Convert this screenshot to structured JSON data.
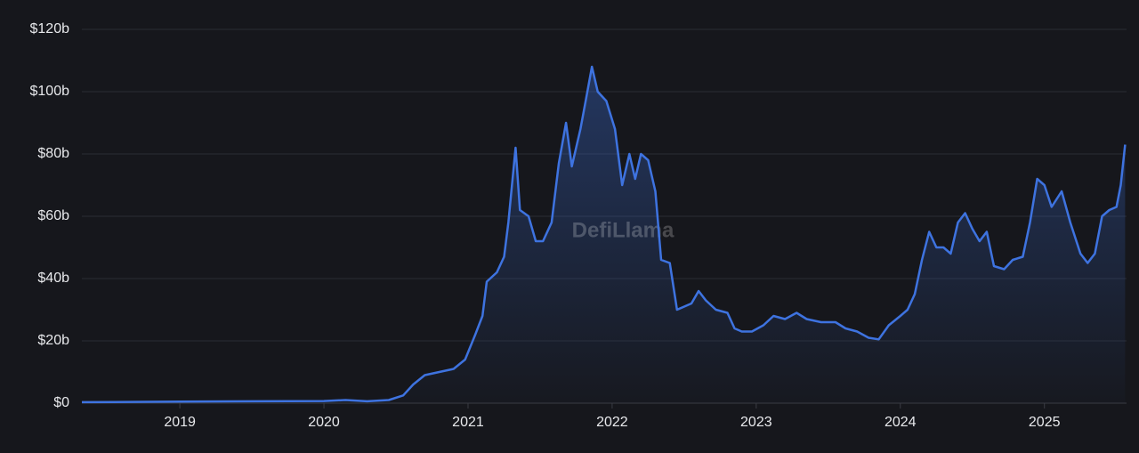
{
  "chart_data": {
    "type": "area",
    "watermark": "DefiLlama",
    "color": "#3e73e0",
    "grid": true,
    "xlim": [
      2018.32,
      2025.57
    ],
    "xticks": [
      2019,
      2020,
      2021,
      2022,
      2023,
      2024,
      2025
    ],
    "ylim": [
      0,
      120
    ],
    "yticks": [
      {
        "value": 0,
        "label": "$0"
      },
      {
        "value": 20,
        "label": "$20b"
      },
      {
        "value": 40,
        "label": "$40b"
      },
      {
        "value": 60,
        "label": "$60b"
      },
      {
        "value": 80,
        "label": "$80b"
      },
      {
        "value": 100,
        "label": "$100b"
      },
      {
        "value": 120,
        "label": "$120b"
      }
    ],
    "x": [
      2018.32,
      2019.0,
      2019.5,
      2020.0,
      2020.15,
      2020.3,
      2020.45,
      2020.55,
      2020.62,
      2020.7,
      2020.8,
      2020.9,
      2020.98,
      2021.05,
      2021.1,
      2021.13,
      2021.2,
      2021.25,
      2021.28,
      2021.33,
      2021.36,
      2021.42,
      2021.47,
      2021.52,
      2021.58,
      2021.63,
      2021.68,
      2021.72,
      2021.78,
      2021.82,
      2021.86,
      2021.9,
      2021.96,
      2022.02,
      2022.07,
      2022.12,
      2022.16,
      2022.2,
      2022.25,
      2022.3,
      2022.34,
      2022.4,
      2022.45,
      2022.55,
      2022.6,
      2022.65,
      2022.72,
      2022.8,
      2022.85,
      2022.9,
      2022.97,
      2023.05,
      2023.12,
      2023.2,
      2023.28,
      2023.35,
      2023.45,
      2023.55,
      2023.62,
      2023.7,
      2023.78,
      2023.85,
      2023.92,
      2024.0,
      2024.05,
      2024.1,
      2024.15,
      2024.2,
      2024.25,
      2024.3,
      2024.35,
      2024.4,
      2024.45,
      2024.5,
      2024.55,
      2024.6,
      2024.65,
      2024.72,
      2024.78,
      2024.85,
      2024.9,
      2024.95,
      2025.0,
      2025.05,
      2025.12,
      2025.18,
      2025.25,
      2025.3,
      2025.35,
      2025.4,
      2025.45,
      2025.5,
      2025.53,
      2025.56
    ],
    "values": [
      0.3,
      0.5,
      0.6,
      0.7,
      1.0,
      0.6,
      1.0,
      2.5,
      6,
      9,
      10,
      11,
      14,
      22,
      28,
      39,
      42,
      47,
      58,
      82,
      62,
      60,
      52,
      52,
      58,
      77,
      90,
      76,
      88,
      98,
      108,
      100,
      97,
      88,
      70,
      80,
      72,
      80,
      78,
      68,
      46,
      45,
      30,
      32,
      36,
      33,
      30,
      29,
      24,
      23,
      23,
      25,
      28,
      27,
      29,
      27,
      26,
      26,
      24,
      23,
      21,
      20.5,
      25,
      28,
      30,
      35,
      46,
      55,
      50,
      50,
      48,
      58,
      61,
      56,
      52,
      55,
      44,
      43,
      46,
      47,
      58,
      72,
      70,
      63,
      68,
      58,
      48,
      45,
      48,
      60,
      62,
      63,
      70,
      83
    ]
  }
}
